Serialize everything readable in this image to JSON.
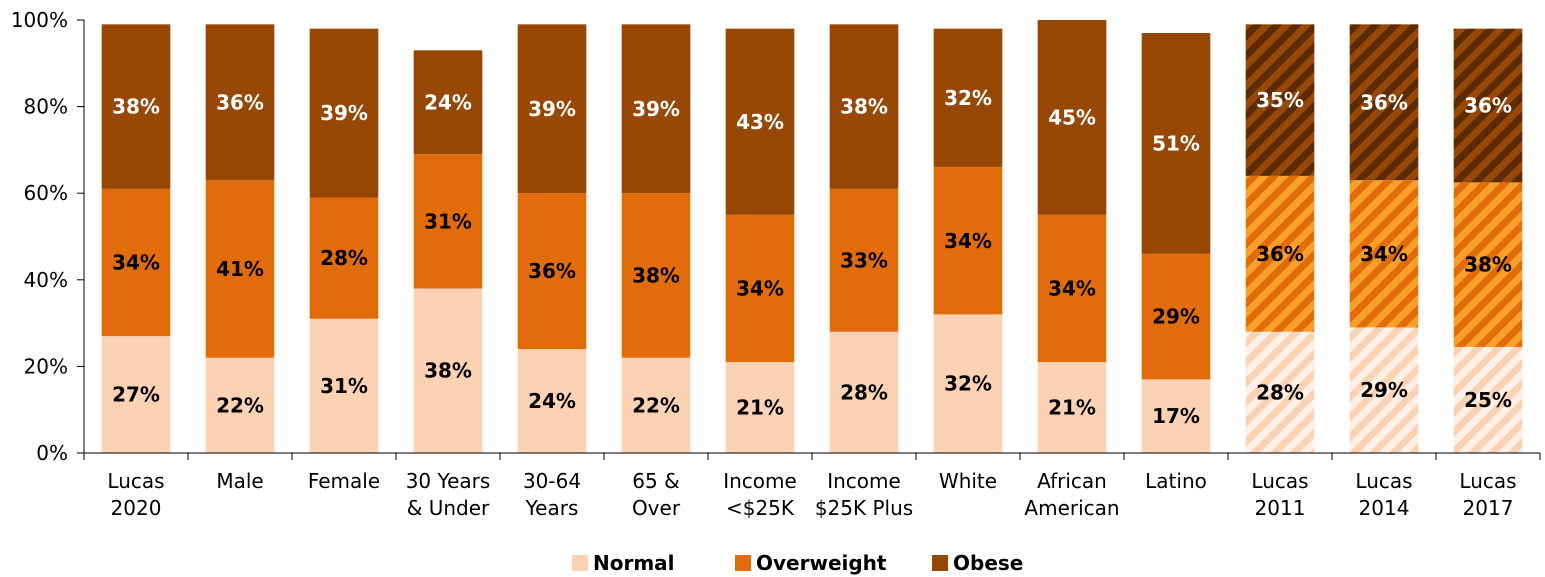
{
  "chart_data": {
    "type": "bar",
    "stacked": true,
    "categories": [
      [
        "Lucas",
        "2020"
      ],
      [
        "Male"
      ],
      [
        "Female"
      ],
      [
        "30 Years",
        "& Under"
      ],
      [
        "30-64",
        "Years"
      ],
      [
        "65 &",
        "Over"
      ],
      [
        "Income",
        "<$25K"
      ],
      [
        "Income",
        "$25K Plus"
      ],
      [
        "White"
      ],
      [
        "African",
        "American"
      ],
      [
        "Latino"
      ],
      [
        "Lucas",
        "2011"
      ],
      [
        "Lucas",
        "2014"
      ],
      [
        "Lucas",
        "2017"
      ]
    ],
    "hatched": [
      false,
      false,
      false,
      false,
      false,
      false,
      false,
      false,
      false,
      false,
      false,
      true,
      true,
      true
    ],
    "series": [
      {
        "name": "Normal",
        "color": "#FBD3B4",
        "label_color": "#000000",
        "values": [
          27,
          22,
          31,
          38,
          24,
          22,
          21,
          28,
          32,
          21,
          17,
          28,
          29,
          24.5
        ],
        "labels": [
          "27%",
          "22%",
          "31%",
          "38%",
          "24%",
          "22%",
          "21%",
          "28%",
          "32%",
          "21%",
          "17%",
          "28%",
          "29%",
          "25%"
        ]
      },
      {
        "name": "Overweight",
        "color": "#E36C0A",
        "label_color": "#000000",
        "values": [
          34,
          41,
          28,
          31,
          36,
          38,
          34,
          33,
          34,
          34,
          29,
          36,
          34,
          38
        ],
        "labels": [
          "34%",
          "41%",
          "28%",
          "31%",
          "36%",
          "38%",
          "34%",
          "33%",
          "34%",
          "34%",
          "29%",
          "36%",
          "34%",
          "38%"
        ]
      },
      {
        "name": "Obese",
        "color": "#974806",
        "label_color": "#FFFFFF",
        "values": [
          38,
          36,
          39,
          24,
          39,
          39,
          43,
          38,
          32,
          45,
          51,
          35,
          36,
          35.5
        ],
        "labels": [
          "38%",
          "36%",
          "39%",
          "24%",
          "39%",
          "39%",
          "43%",
          "38%",
          "32%",
          "45%",
          "51%",
          "35%",
          "36%",
          "36%"
        ]
      }
    ],
    "y_ticks": [
      "0%",
      "20%",
      "40%",
      "60%",
      "80%",
      "100%"
    ],
    "ylim": [
      0,
      100
    ],
    "grid": false,
    "legend_position": "bottom-center"
  }
}
